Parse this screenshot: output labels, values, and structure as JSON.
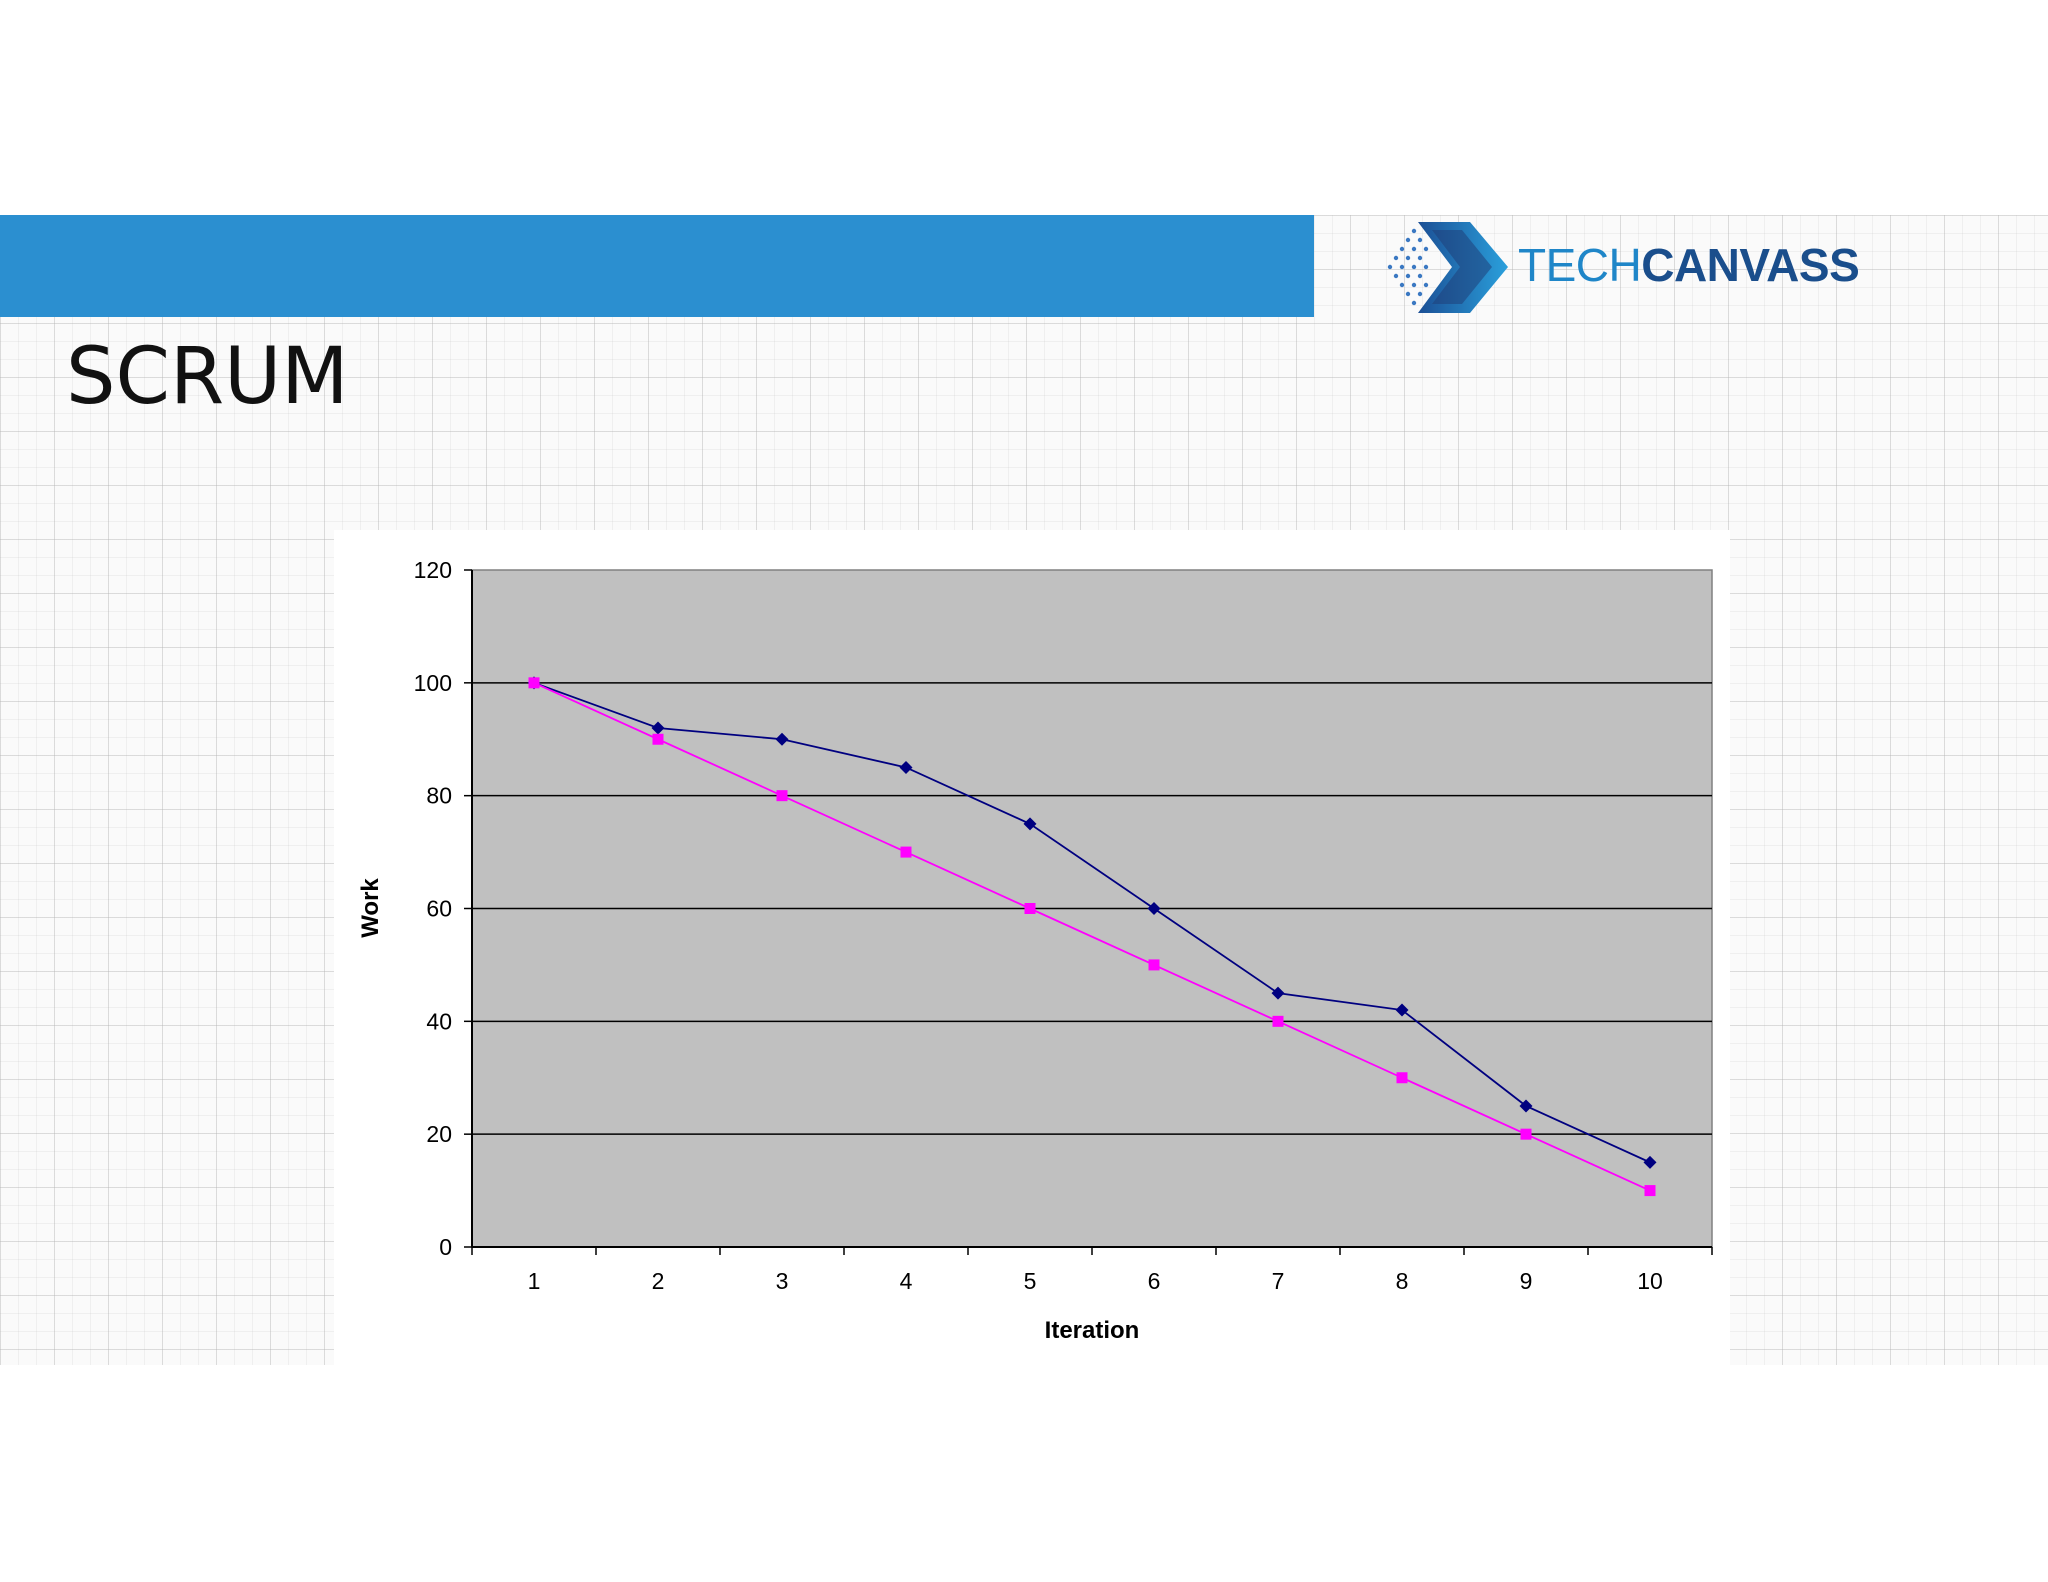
{
  "slide": {
    "title": "SCRUM"
  },
  "logo": {
    "text_part1": "TECH",
    "text_part2": "CANVASS",
    "colors": {
      "tech": "#1f86c8",
      "canvass": "#1a4e8c",
      "mark": "#1e6fb5"
    }
  },
  "header_bar_color": "#2b8fd0",
  "chart_data": {
    "type": "line",
    "title": "",
    "xlabel": "Iteration",
    "ylabel": "Work",
    "x": [
      1,
      2,
      3,
      4,
      5,
      6,
      7,
      8,
      9,
      10
    ],
    "ylim": [
      0,
      120
    ],
    "yticks": [
      0,
      20,
      40,
      60,
      80,
      100,
      120
    ],
    "grid": "horizontal",
    "plot_background": "#c0c0c0",
    "series": [
      {
        "values": [
          100,
          92,
          90,
          85,
          75,
          60,
          45,
          42,
          25,
          15
        ],
        "color": "#000080",
        "marker": "diamond"
      },
      {
        "values": [
          100,
          90,
          80,
          70,
          60,
          50,
          40,
          30,
          20,
          10
        ],
        "color": "#ff00ff",
        "marker": "square"
      }
    ]
  }
}
